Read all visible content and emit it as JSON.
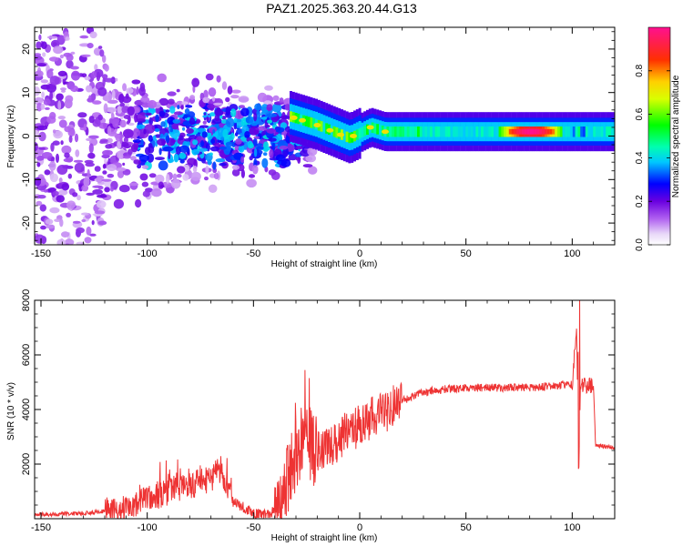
{
  "title": "PAZ1.2025.363.20.44.G13",
  "chart_data": [
    {
      "type": "heatmap",
      "xlabel": "Height of straight line (km)",
      "ylabel": "Frequency (Hz)",
      "xlim": [
        -153,
        120
      ],
      "ylim": [
        -25,
        25
      ],
      "xticks": [
        -150,
        -100,
        -50,
        0,
        50,
        100
      ],
      "yticks": [
        -20,
        -10,
        0,
        10,
        20
      ],
      "xtick_labels": [
        "-150",
        "-100",
        "-50",
        "0",
        "50",
        "100"
      ],
      "ytick_labels": [
        "-20",
        "-10",
        "0",
        "10",
        "20"
      ],
      "colorbar": {
        "label": "Normalized spectral amplitude",
        "range": [
          0,
          1
        ],
        "ticks": [
          0.0,
          0.2,
          0.4,
          0.6,
          0.8
        ],
        "tick_labels": [
          "0.0",
          "0.2",
          "0.4",
          "0.6",
          "0.8"
        ],
        "colormap": "rainbow (magenta-violet-blue-cyan-green-yellow-red-pink)"
      },
      "features": {
        "noisy_region_km": [
          -153,
          -22
        ],
        "signal_track_start_km": -33,
        "signal_track_freq_hz": 1.0,
        "peak_amplitude_region_km": [
          65,
          95
        ]
      }
    },
    {
      "type": "line",
      "xlabel": "Height of straight line (km)",
      "ylabel": "SNR (10 * v/v)",
      "xlim": [
        -153,
        120
      ],
      "ylim": [
        0,
        8000
      ],
      "xticks": [
        -150,
        -100,
        -50,
        0,
        50,
        100
      ],
      "yticks": [
        2000,
        4000,
        6000,
        8000
      ],
      "xtick_labels": [
        "-150",
        "-100",
        "-50",
        "0",
        "50",
        "100"
      ],
      "ytick_labels": [
        "2000",
        "4000",
        "6000",
        "8000"
      ],
      "series": [
        {
          "name": "SNR",
          "color": "#ee3333",
          "x": [
            -153,
            -130,
            -110,
            -100,
            -90,
            -80,
            -70,
            -66,
            -60,
            -50,
            -42,
            -38,
            -35,
            -30,
            -27,
            -25,
            -23,
            -20,
            -15,
            -10,
            -5,
            0,
            5,
            10,
            15,
            20,
            25,
            30,
            35,
            40,
            50,
            60,
            70,
            80,
            90,
            95,
            100,
            102,
            103,
            104,
            106,
            110,
            111,
            120
          ],
          "y": [
            150,
            200,
            350,
            700,
            1000,
            1200,
            1450,
            1800,
            650,
            200,
            150,
            600,
            1300,
            2200,
            2800,
            3500,
            2700,
            2400,
            2600,
            2900,
            3200,
            3400,
            3650,
            3850,
            4050,
            4300,
            4500,
            4600,
            4700,
            4750,
            4800,
            4800,
            4800,
            4800,
            4850,
            4900,
            4900,
            7000,
            2800,
            4800,
            4900,
            4850,
            2700,
            2600
          ]
        }
      ]
    }
  ]
}
